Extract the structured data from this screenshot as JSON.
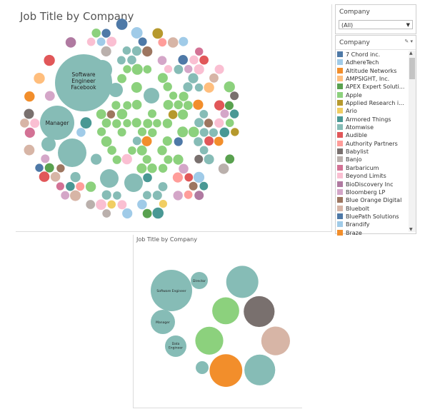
{
  "top_view": {
    "title": "Job Title by Company",
    "labeled_bubbles": [
      {
        "lines": [
          "Software",
          "Engineer",
          "Facebook"
        ]
      },
      {
        "lines": [
          "Manager"
        ]
      }
    ]
  },
  "filter": {
    "label": "Company",
    "selected": "(All)"
  },
  "legend": {
    "label": "Company",
    "items": [
      {
        "name": "7 Chord inc.",
        "color": "#4e79a7"
      },
      {
        "name": "AdhereTech",
        "color": "#a0cbe8"
      },
      {
        "name": "Altitude Networks",
        "color": "#f28e2b"
      },
      {
        "name": "AMPSIGHT, Inc.",
        "color": "#ffbe7d"
      },
      {
        "name": "APEX Expert Soluti...",
        "color": "#59a14f"
      },
      {
        "name": "Apple",
        "color": "#8cd17d"
      },
      {
        "name": "Applied Research i...",
        "color": "#b6992d"
      },
      {
        "name": "Ario",
        "color": "#f1ce63"
      },
      {
        "name": "Armored Things",
        "color": "#499894"
      },
      {
        "name": "Atomwise",
        "color": "#86bcb6"
      },
      {
        "name": "Audible",
        "color": "#e15759"
      },
      {
        "name": "Authority Partners",
        "color": "#ff9d9a"
      },
      {
        "name": "Babylist",
        "color": "#79706e"
      },
      {
        "name": "Banjo",
        "color": "#bab0ac"
      },
      {
        "name": "Barbaricum",
        "color": "#d37295"
      },
      {
        "name": "Beyond Limits",
        "color": "#fabfd2"
      },
      {
        "name": "BioDiscovery Inc",
        "color": "#b07aa1"
      },
      {
        "name": "Bloomberg LP",
        "color": "#d4a6c8"
      },
      {
        "name": "Blue Orange Digital",
        "color": "#9d7660"
      },
      {
        "name": "Bluebolt",
        "color": "#d7b5a6"
      },
      {
        "name": "BluePath Solutions",
        "color": "#4e79a7"
      },
      {
        "name": "Brandify",
        "color": "#a0cbe8"
      },
      {
        "name": "Braze",
        "color": "#f28e2b"
      }
    ]
  },
  "bottom_view": {
    "title": "Job Title by Company",
    "labeled_bubbles": [
      {
        "lines": [
          "Software Engineer"
        ]
      },
      {
        "lines": [
          "Director"
        ]
      },
      {
        "lines": [
          "Manager"
        ]
      },
      {
        "lines": [
          "Data",
          "Engineer"
        ]
      }
    ]
  },
  "palette": [
    "#4e79a7",
    "#a0cbe8",
    "#f28e2b",
    "#ffbe7d",
    "#59a14f",
    "#8cd17d",
    "#b6992d",
    "#f1ce63",
    "#499894",
    "#86bcb6",
    "#e15759",
    "#ff9d9a",
    "#79706e",
    "#bab0ac",
    "#d37295",
    "#fabfd2",
    "#b07aa1",
    "#d4a6c8",
    "#9d7660",
    "#d7b5a6"
  ],
  "bubble_teal": "#86bcb6",
  "bubble_green": "#8cd17d"
}
